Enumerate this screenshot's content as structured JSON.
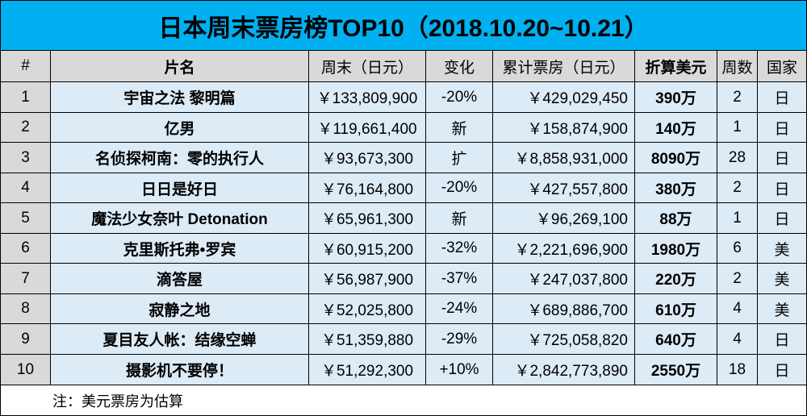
{
  "chart_data": {
    "type": "table",
    "title": "日本周末票房榜TOP10（2018.10.20~10.21）",
    "columns": [
      "#",
      "片名",
      "周末（日元）",
      "变化",
      "累计票房（日元）",
      "折算美元",
      "周数",
      "国家"
    ],
    "rows": [
      [
        "1",
        "宇宙之法 黎明篇",
        "￥133,809,900",
        "-20%",
        "￥429,029,450",
        "390万",
        "2",
        "日"
      ],
      [
        "2",
        "亿男",
        "￥119,661,400",
        "新",
        "￥158,874,900",
        "140万",
        "1",
        "日"
      ],
      [
        "3",
        "名侦探柯南：零的执行人",
        "￥93,673,300",
        "扩",
        "￥8,858,931,000",
        "8090万",
        "28",
        "日"
      ],
      [
        "4",
        "日日是好日",
        "￥76,164,800",
        "-20%",
        "￥427,557,800",
        "380万",
        "2",
        "日"
      ],
      [
        "5",
        "魔法少女奈叶 Detonation",
        "￥65,961,300",
        "新",
        "￥96,269,100",
        "88万",
        "1",
        "日"
      ],
      [
        "6",
        "克里斯托弗•罗宾",
        "￥60,915,200",
        "-32%",
        "￥2,221,696,900",
        "1980万",
        "6",
        "美"
      ],
      [
        "7",
        "滴答屋",
        "￥56,987,900",
        "-37%",
        "￥247,037,800",
        "220万",
        "2",
        "美"
      ],
      [
        "8",
        "寂静之地",
        "￥52,025,800",
        "-24%",
        "￥689,886,700",
        "610万",
        "4",
        "美"
      ],
      [
        "9",
        "夏目友人帐：结缘空蝉",
        "￥51,359,880",
        "-29%",
        "￥725,058,820",
        "640万",
        "4",
        "日"
      ],
      [
        "10",
        "摄影机不要停！",
        "￥51,292,300",
        "+10%",
        "￥2,842,773,890",
        "2550万",
        "18",
        "日"
      ]
    ],
    "note": "注：美元票房为估算"
  },
  "colors": {
    "title_bg": "#00B0F0",
    "header_bg": "#D9D9D9",
    "rank_bg": "#D9D9D9",
    "cell_bg": "#DDEBF7",
    "grid_line": "#000000"
  }
}
